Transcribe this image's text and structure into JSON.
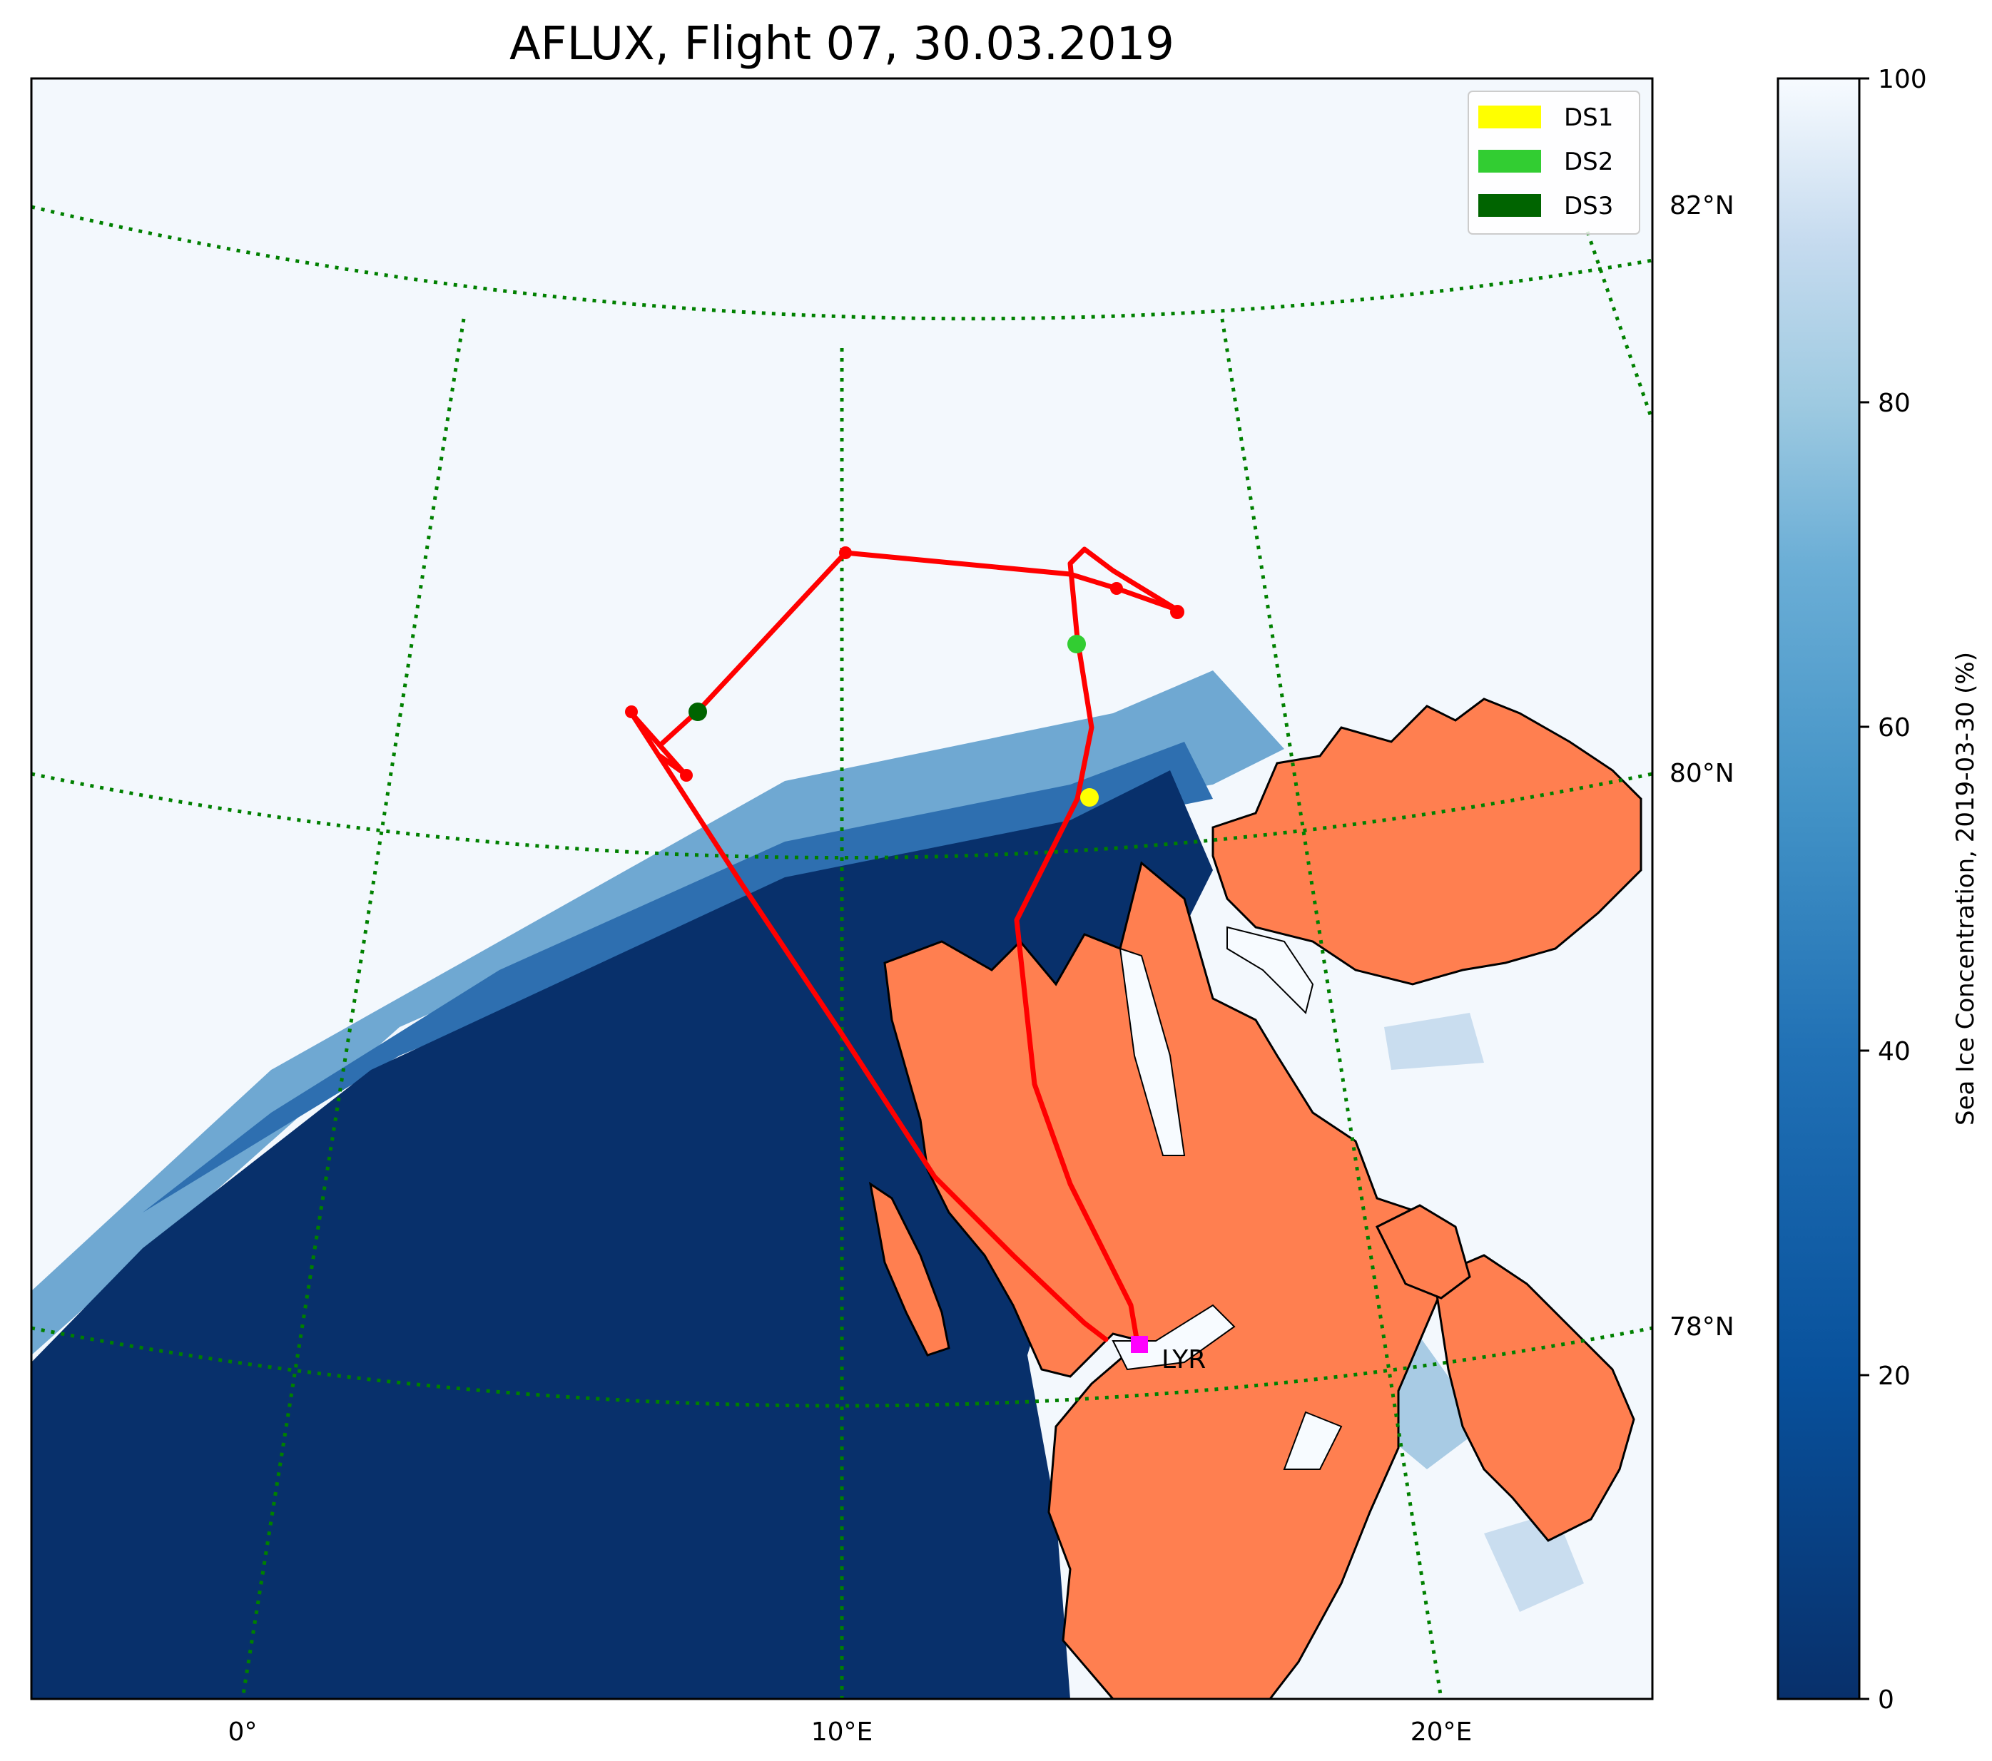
{
  "title": "AFLUX, Flight 07, 30.03.2019",
  "legend": {
    "position": "top-right",
    "entries": [
      {
        "label": "DS1",
        "color": "#ffff00"
      },
      {
        "label": "DS2",
        "color": "#32cd32"
      },
      {
        "label": "DS3",
        "color": "#006400"
      }
    ]
  },
  "lon_labels": [
    "0°",
    "10°E",
    "20°E"
  ],
  "lat_labels": [
    "82°N",
    "80°N",
    "78°N"
  ],
  "station_label": "LYR",
  "colorbar": {
    "label": "Sea Ice Concentration, 2019-03-30 (%)",
    "ticks": [
      "0",
      "20",
      "40",
      "60",
      "80",
      "100"
    ],
    "colormap": "Blues_r",
    "color_min": "#08306b",
    "color_max": "#f7fbff"
  },
  "colors": {
    "track": "#ff0000",
    "land": "#ff7f50",
    "gridlines": "#008000",
    "open_water": "#08306b",
    "station_marker": "#ff00ff"
  }
}
